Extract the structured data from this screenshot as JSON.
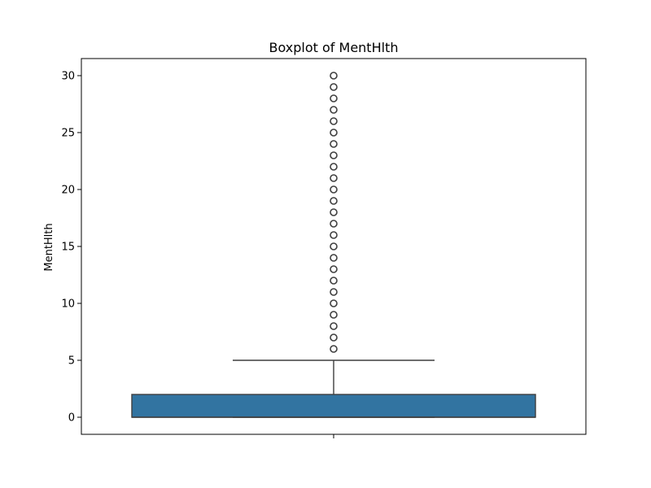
{
  "chart_data": {
    "type": "boxplot",
    "title": "Boxplot of MentHlth",
    "xlabel": "",
    "ylabel": "MentHlth",
    "ylim": [
      -1.5,
      31.5
    ],
    "y_ticks": [
      0,
      5,
      10,
      15,
      20,
      25,
      30
    ],
    "grid": false,
    "box": {
      "min": 0,
      "q1": 0,
      "median": 0,
      "q3": 2,
      "whisker_low": 0,
      "whisker_high": 5,
      "fill_color": "#3274a1",
      "edge_color": "#3f3f3f"
    },
    "outliers": [
      6,
      7,
      8,
      9,
      10,
      11,
      12,
      13,
      14,
      15,
      16,
      17,
      18,
      19,
      20,
      21,
      22,
      23,
      24,
      25,
      26,
      27,
      28,
      29,
      30
    ]
  }
}
